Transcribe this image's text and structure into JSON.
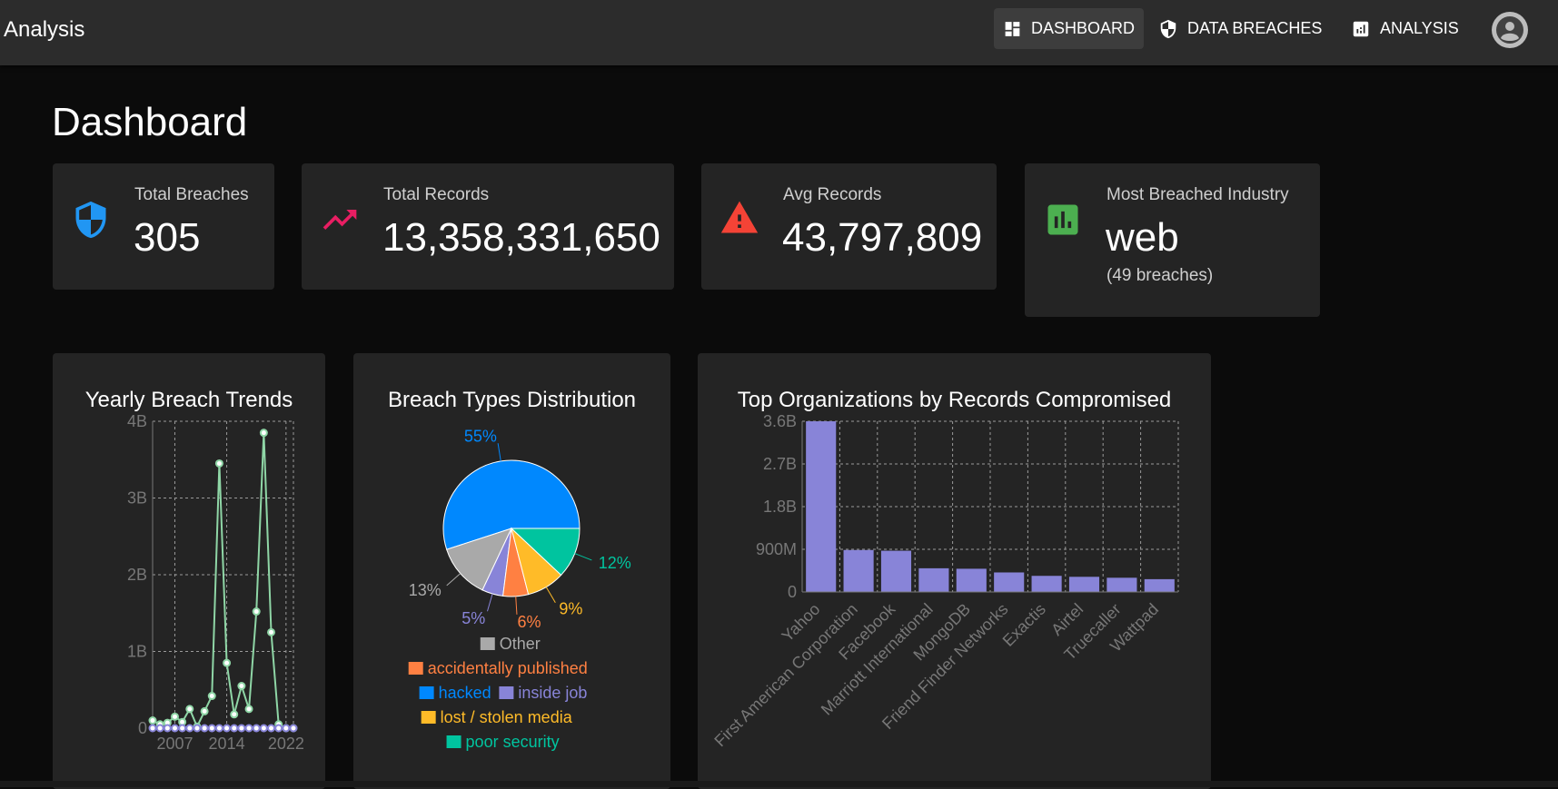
{
  "app": {
    "title": "Analysis"
  },
  "nav": {
    "dashboard": "DASHBOARD",
    "breaches": "DATA BREACHES",
    "analysis": "ANALYSIS"
  },
  "page": {
    "title": "Dashboard"
  },
  "stats": {
    "total_breaches": {
      "label": "Total Breaches",
      "value": "305"
    },
    "total_records": {
      "label": "Total Records",
      "value": "13,358,331,650"
    },
    "avg_records": {
      "label": "Avg Records",
      "value": "43,797,809"
    },
    "industry": {
      "label": "Most Breached Industry",
      "value": "web",
      "sub": "(49 breaches)"
    }
  },
  "colors": {
    "accent_blue": "#2196f3",
    "trend_pink": "#e91e63",
    "warning_red": "#f44336",
    "industry_green": "#4caf50",
    "line_green": "#8fd6a6",
    "bar_purple": "#8884d8"
  },
  "panels": {
    "yearly": {
      "title": "Yearly Breach Trends"
    },
    "types": {
      "title": "Breach Types Distribution"
    },
    "orgs": {
      "title": "Top Organizations by Records Compromised"
    }
  },
  "chart_data": [
    {
      "type": "line",
      "title": "Yearly Breach Trends",
      "x": [
        2004,
        2005,
        2006,
        2007,
        2008,
        2009,
        2010,
        2011,
        2012,
        2013,
        2014,
        2015,
        2016,
        2017,
        2018,
        2019,
        2020,
        2021,
        2022,
        2023
      ],
      "xticks": [
        "2007",
        "2014",
        "2022"
      ],
      "yticks": [
        "0",
        "1B",
        "2B",
        "3B",
        "4B"
      ],
      "ylim": [
        0,
        4000000000
      ],
      "grid": true,
      "series": [
        {
          "color": "#8fd6a6",
          "values": [
            100000000,
            50000000,
            70000000,
            150000000,
            80000000,
            250000000,
            20000000,
            220000000,
            420000000,
            3450000000,
            850000000,
            180000000,
            550000000,
            250000000,
            1520000000,
            3850000000,
            1250000000,
            50000000,
            0,
            0
          ]
        },
        {
          "color": "#8884d8",
          "values": [
            1,
            2,
            2,
            3,
            3,
            5,
            4,
            6,
            8,
            10,
            12,
            14,
            18,
            20,
            25,
            30,
            35,
            40,
            45,
            30
          ]
        }
      ]
    },
    {
      "type": "pie",
      "title": "Breach Types Distribution",
      "slices": [
        {
          "label": "hacked",
          "value": 55,
          "text": "55%",
          "color": "#0088fe"
        },
        {
          "label": "Other",
          "value": 13,
          "text": "13%",
          "color": "#a9a9a9"
        },
        {
          "label": "inside job",
          "value": 5,
          "text": "5%",
          "color": "#8884d8"
        },
        {
          "label": "accidentally published",
          "value": 6,
          "text": "6%",
          "color": "#ff8042"
        },
        {
          "label": "lost / stolen media",
          "value": 9,
          "text": "9%",
          "color": "#ffbb28"
        },
        {
          "label": "poor security",
          "value": 12,
          "text": "12%",
          "color": "#00c49f"
        }
      ],
      "legend": "bottom"
    },
    {
      "type": "bar",
      "title": "Top Organizations by Records Compromised",
      "categories": [
        "Yahoo",
        "First American Corporation",
        "Facebook",
        "Marriott International",
        "MongoDB",
        "Friend Finder Networks",
        "Exactis",
        "Airtel",
        "Truecaller",
        "Wattpad"
      ],
      "values": [
        3600000000,
        885000000,
        870000000,
        500000000,
        490000000,
        412000000,
        340000000,
        320000000,
        300000000,
        270000000
      ],
      "yticks": [
        "0",
        "900M",
        "1.8B",
        "2.7B",
        "3.6B"
      ],
      "ylim": [
        0,
        3600000000
      ],
      "grid": true,
      "color": "#8884d8"
    }
  ]
}
